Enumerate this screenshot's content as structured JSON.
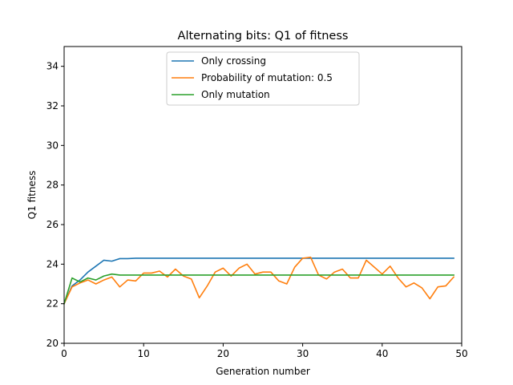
{
  "chart_data": {
    "type": "line",
    "title": "Alternating bits: Q1 of fitness",
    "xlabel": "Generation number",
    "ylabel": "Q1 fitness",
    "xlim": [
      0,
      50
    ],
    "ylim": [
      20,
      35
    ],
    "xticks": [
      0,
      10,
      20,
      30,
      40,
      50
    ],
    "yticks": [
      20,
      22,
      24,
      26,
      28,
      30,
      32,
      34
    ],
    "grid": false,
    "legend_position": "upper center",
    "series": [
      {
        "name": "Only crossing",
        "color": "#1f77b4",
        "x": [
          0,
          1,
          2,
          3,
          4,
          5,
          6,
          7,
          8,
          9,
          10,
          11,
          12,
          13,
          14,
          15,
          16,
          17,
          18,
          19,
          20,
          21,
          22,
          23,
          24,
          25,
          26,
          27,
          28,
          29,
          30,
          31,
          32,
          33,
          34,
          35,
          36,
          37,
          38,
          39,
          40,
          41,
          42,
          43,
          44,
          45,
          46,
          47,
          48,
          49
        ],
        "values": [
          22.0,
          22.9,
          23.2,
          23.6,
          23.9,
          24.2,
          24.15,
          24.28,
          24.28,
          24.3,
          24.3,
          24.3,
          24.3,
          24.3,
          24.3,
          24.3,
          24.3,
          24.3,
          24.3,
          24.3,
          24.3,
          24.3,
          24.3,
          24.3,
          24.3,
          24.3,
          24.3,
          24.3,
          24.3,
          24.3,
          24.3,
          24.3,
          24.3,
          24.3,
          24.3,
          24.3,
          24.3,
          24.3,
          24.3,
          24.3,
          24.3,
          24.3,
          24.3,
          24.3,
          24.3,
          24.3,
          24.3,
          24.3,
          24.3,
          24.3
        ]
      },
      {
        "name": "Probability of mutation: 0.5",
        "color": "#ff7f0e",
        "x": [
          0,
          1,
          2,
          3,
          4,
          5,
          6,
          7,
          8,
          9,
          10,
          11,
          12,
          13,
          14,
          15,
          16,
          17,
          18,
          19,
          20,
          21,
          22,
          23,
          24,
          25,
          26,
          27,
          28,
          29,
          30,
          31,
          32,
          33,
          34,
          35,
          36,
          37,
          38,
          39,
          40,
          41,
          42,
          43,
          44,
          45,
          46,
          47,
          48,
          49
        ],
        "values": [
          22.0,
          22.85,
          23.05,
          23.2,
          23.0,
          23.2,
          23.35,
          22.85,
          23.2,
          23.15,
          23.55,
          23.55,
          23.65,
          23.35,
          23.75,
          23.4,
          23.25,
          22.3,
          22.9,
          23.6,
          23.8,
          23.4,
          23.8,
          24.0,
          23.5,
          23.6,
          23.6,
          23.15,
          23.0,
          23.85,
          24.3,
          24.35,
          23.45,
          23.25,
          23.6,
          23.75,
          23.3,
          23.3,
          24.2,
          23.85,
          23.5,
          23.9,
          23.3,
          22.85,
          23.05,
          22.8,
          22.25,
          22.85,
          22.9,
          23.35
        ]
      },
      {
        "name": "Only mutation",
        "color": "#2ca02c",
        "x": [
          0,
          1,
          2,
          3,
          4,
          5,
          6,
          7,
          8,
          9,
          10,
          11,
          12,
          13,
          14,
          15,
          16,
          17,
          18,
          19,
          20,
          21,
          22,
          23,
          24,
          25,
          26,
          27,
          28,
          29,
          30,
          31,
          32,
          33,
          34,
          35,
          36,
          37,
          38,
          39,
          40,
          41,
          42,
          43,
          44,
          45,
          46,
          47,
          48,
          49
        ],
        "values": [
          22.0,
          23.3,
          23.1,
          23.3,
          23.2,
          23.4,
          23.5,
          23.45,
          23.45,
          23.45,
          23.45,
          23.45,
          23.45,
          23.45,
          23.45,
          23.45,
          23.45,
          23.45,
          23.45,
          23.45,
          23.45,
          23.45,
          23.45,
          23.45,
          23.45,
          23.45,
          23.45,
          23.45,
          23.45,
          23.45,
          23.45,
          23.45,
          23.45,
          23.45,
          23.45,
          23.45,
          23.45,
          23.45,
          23.45,
          23.45,
          23.45,
          23.45,
          23.45,
          23.45,
          23.45,
          23.45,
          23.45,
          23.45,
          23.45,
          23.45
        ]
      }
    ]
  }
}
